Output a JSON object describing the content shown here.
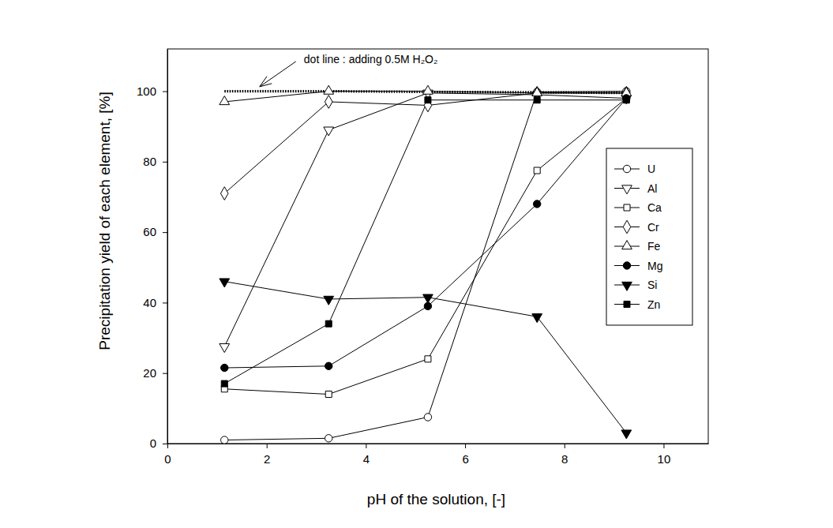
{
  "chart_data": {
    "type": "line",
    "x_label": "pH of the solution, [-]",
    "y_label": "Precipitation yield of each element, [%]",
    "x": [
      1.15,
      3.25,
      5.25,
      7.45,
      9.25
    ],
    "xlim": [
      0,
      10.9
    ],
    "xticks": [
      0,
      2,
      4,
      6,
      8,
      10
    ],
    "ylim": [
      0,
      112
    ],
    "yticks": [
      0,
      20,
      40,
      60,
      80,
      100
    ],
    "grid": false,
    "legend": "right",
    "annotations": [
      {
        "text": "dot line : adding 0.5M H₂O₂",
        "x": 2.75,
        "y": 108
      }
    ],
    "series": [
      {
        "name": "U",
        "color": "#000000",
        "marker": "open-circle",
        "line_style": "solid",
        "values": [
          1,
          1.5,
          7.5,
          99.8,
          100
        ]
      },
      {
        "name": "Al",
        "color": "#000000",
        "marker": "open-triangle-down",
        "line_style": "solid",
        "values": [
          27.5,
          89,
          99.5,
          99,
          98
        ]
      },
      {
        "name": "Ca",
        "color": "#000000",
        "marker": "open-square",
        "line_style": "solid",
        "values": [
          15.5,
          14,
          24,
          77.5,
          98
        ]
      },
      {
        "name": "Cr",
        "color": "#000000",
        "marker": "open-diamond",
        "line_style": "solid",
        "values": [
          71,
          97,
          96,
          99.5,
          99.5
        ]
      },
      {
        "name": "Fe",
        "color": "#000000",
        "marker": "open-triangle-up",
        "line_style": "solid",
        "values": [
          97,
          100,
          100,
          99.5,
          99.5
        ]
      },
      {
        "name": "Mg",
        "color": "#000000",
        "marker": "filled-circle",
        "line_style": "solid",
        "values": [
          21.5,
          22,
          39,
          68,
          98
        ]
      },
      {
        "name": "Si",
        "color": "#000000",
        "marker": "filled-triangle-down",
        "line_style": "solid",
        "values": [
          46,
          41,
          41.5,
          36,
          3
        ]
      },
      {
        "name": "Zn",
        "color": "#000000",
        "marker": "filled-square",
        "line_style": "solid",
        "values": [
          17,
          34,
          97.5,
          97.5,
          97.5
        ]
      },
      {
        "color": "#000000",
        "marker": "none",
        "line_style": "dotted",
        "values": [
          100,
          100,
          99.8,
          99.7,
          99.5
        ]
      }
    ]
  }
}
